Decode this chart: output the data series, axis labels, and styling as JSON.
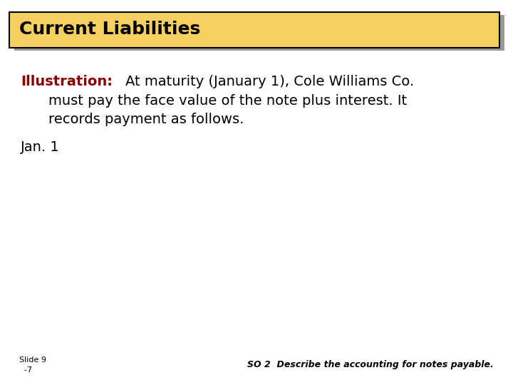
{
  "title": "Current Liabilities",
  "title_bg_color": "#F5D060",
  "title_border_color": "#000000",
  "title_text_color": "#000000",
  "body_bg_color": "#FFFFFF",
  "illustration_label": "Illustration:",
  "illustration_label_color": "#8B0000",
  "illustration_line1": "  At maturity (January 1), Cole Williams Co.",
  "illustration_line2": "    must pay the face value of the note plus interest. It",
  "illustration_line3": "    records payment as follows.",
  "illustration_text_color": "#000000",
  "jan_label": "Jan. 1",
  "jan_label_color": "#000000",
  "footer_left_line1": "Slide 9",
  "footer_left_line2": "  -7",
  "footer_right": "SO 2  Describe the accounting for notes payable.",
  "footer_color": "#000000",
  "shadow_color": "#999999"
}
